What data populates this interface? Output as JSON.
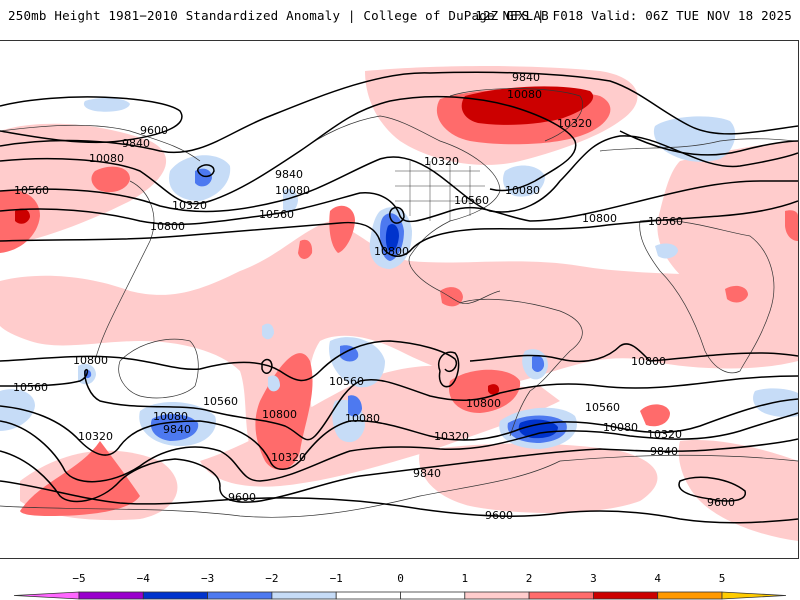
{
  "header": {
    "title_left": "250mb Height 1981−2010 Standardized Anomaly | College of DuPage NEXLAB",
    "title_right": "12Z GFS | F018 Valid: 06Z TUE NOV 18 2025"
  },
  "map": {
    "product": "250mb Height Standardized Anomaly",
    "contour_labels": [
      {
        "text": "9840",
        "id": "c1"
      },
      {
        "text": "10080",
        "id": "c2"
      },
      {
        "text": "10320",
        "id": "c3"
      },
      {
        "text": "9600",
        "id": "c4"
      },
      {
        "text": "9840",
        "id": "c5"
      },
      {
        "text": "10080",
        "id": "c6"
      },
      {
        "text": "10560",
        "id": "c7"
      },
      {
        "text": "10320",
        "id": "c8"
      },
      {
        "text": "10800",
        "id": "c9"
      },
      {
        "text": "9840",
        "id": "c10"
      },
      {
        "text": "10080",
        "id": "c11"
      },
      {
        "text": "10560",
        "id": "c12"
      },
      {
        "text": "10320",
        "id": "c13"
      },
      {
        "text": "10800",
        "id": "c14"
      },
      {
        "text": "10320",
        "id": "c15"
      },
      {
        "text": "10080",
        "id": "c16"
      },
      {
        "text": "10560",
        "id": "c17"
      },
      {
        "text": "10800",
        "id": "c18"
      },
      {
        "text": "10560",
        "id": "c19"
      },
      {
        "text": "10800",
        "id": "c20"
      },
      {
        "text": "10560",
        "id": "c21"
      },
      {
        "text": "10320",
        "id": "c22"
      },
      {
        "text": "10080",
        "id": "c23"
      },
      {
        "text": "9840",
        "id": "c24"
      },
      {
        "text": "10560",
        "id": "c25"
      },
      {
        "text": "10800",
        "id": "c26"
      },
      {
        "text": "10320",
        "id": "c27"
      },
      {
        "text": "10560",
        "id": "c28"
      },
      {
        "text": "10080",
        "id": "c29"
      },
      {
        "text": "9600",
        "id": "c30"
      },
      {
        "text": "10800",
        "id": "c31"
      },
      {
        "text": "10320",
        "id": "c32"
      },
      {
        "text": "10560",
        "id": "c33"
      },
      {
        "text": "10080",
        "id": "c34"
      },
      {
        "text": "10320",
        "id": "c35"
      },
      {
        "text": "9840",
        "id": "c36"
      },
      {
        "text": "9840",
        "id": "c37"
      },
      {
        "text": "9600",
        "id": "c38"
      },
      {
        "text": "9600",
        "id": "c39"
      },
      {
        "text": "10800",
        "id": "c40"
      },
      {
        "text": "10560",
        "id": "c41"
      }
    ],
    "anomaly_colors": {
      "neg5": "#ff66ff",
      "neg4": "#9900cc",
      "neg3": "#0033cc",
      "neg2": "#4d79f0",
      "neg1": "#c6dcf7",
      "zero": "#ffffff",
      "pos1": "#ffcccc",
      "pos2": "#ff6b6b",
      "pos3": "#cc0000",
      "pos4": "#ff9900",
      "pos5": "#ffcc00"
    }
  },
  "colorbar": {
    "ticks": [
      "−5",
      "−4",
      "−3",
      "−2",
      "−1",
      "0",
      "1",
      "2",
      "3",
      "4",
      "5"
    ],
    "bins": [
      {
        "range": "<-5",
        "color": "#ff66ff"
      },
      {
        "range": "-5 to -4",
        "color": "#9900cc"
      },
      {
        "range": "-4 to -3",
        "color": "#0033cc"
      },
      {
        "range": "-3 to -2",
        "color": "#4d79f0"
      },
      {
        "range": "-2 to -1",
        "color": "#c6dcf7"
      },
      {
        "range": "-1 to 0",
        "color": "#ffffff"
      },
      {
        "range": "0 to 1",
        "color": "#ffffff"
      },
      {
        "range": "1 to 2",
        "color": "#ffcccc"
      },
      {
        "range": "2 to 3",
        "color": "#ff6b6b"
      },
      {
        "range": "3 to 4",
        "color": "#cc0000"
      },
      {
        "range": "4 to 5",
        "color": "#ff9900"
      },
      {
        "range": ">5",
        "color": "#ffcc00"
      }
    ]
  }
}
